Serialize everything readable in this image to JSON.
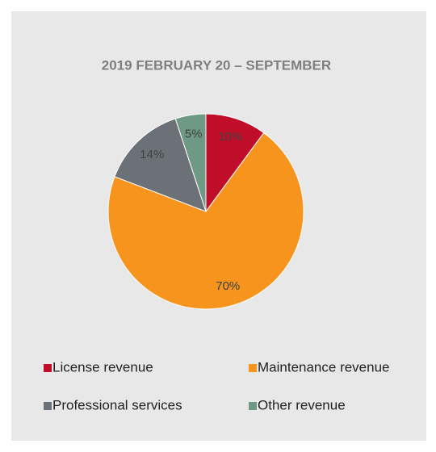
{
  "chart_data": {
    "type": "pie",
    "title": "2019 FEBRUARY 20 – SEPTEMBER",
    "categories": [
      "License revenue",
      "Maintenance revenue",
      "Professional services",
      "Other revenue"
    ],
    "values": [
      10,
      70,
      14,
      5
    ],
    "value_labels": [
      "10%",
      "70%",
      "14%",
      "5%"
    ],
    "colors": [
      "#c00d2a",
      "#f7941d",
      "#6c7177",
      "#6e9a85"
    ],
    "legend": "bottom"
  }
}
